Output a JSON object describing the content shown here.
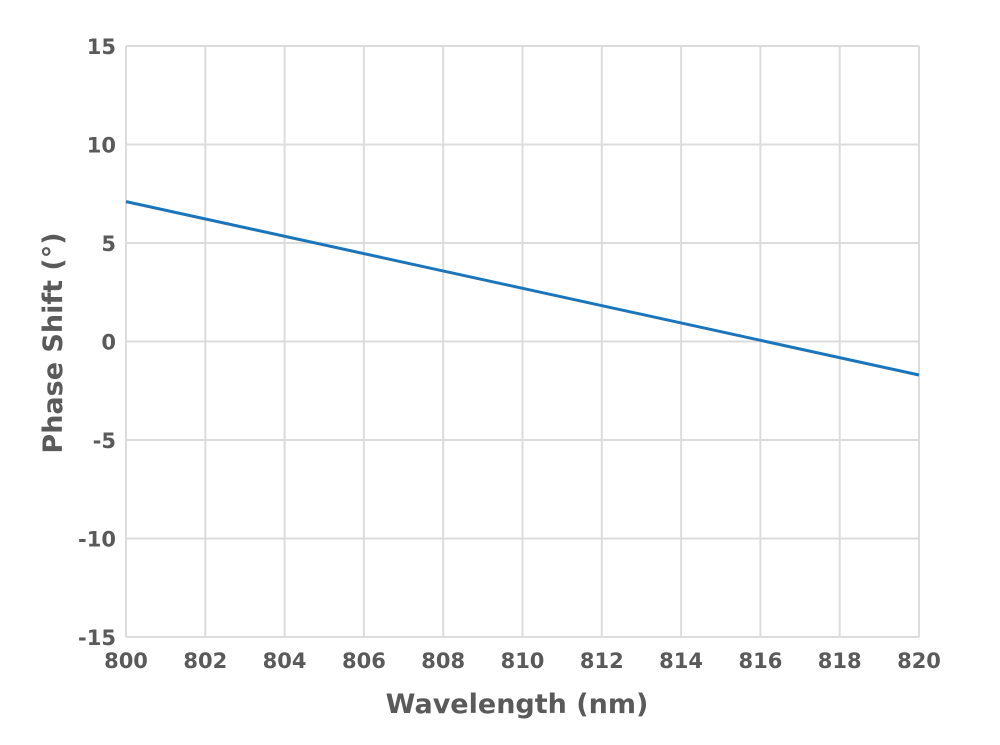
{
  "chart_data": {
    "type": "line",
    "xlabel": "Wavelength (nm)",
    "ylabel": "Phase Shift (°)",
    "xlim": [
      800,
      820
    ],
    "ylim": [
      -15,
      15
    ],
    "x_ticks": [
      "800",
      "802",
      "804",
      "806",
      "808",
      "810",
      "812",
      "814",
      "816",
      "818",
      "820"
    ],
    "y_ticks": [
      "15",
      "10",
      "5",
      "0",
      "-5",
      "-10",
      "-15"
    ],
    "grid": true,
    "legend": "none",
    "series": [
      {
        "color": "#1a75bb",
        "x": [
          800,
          820
        ],
        "y": [
          7.1,
          -1.7
        ]
      }
    ],
    "colors": {
      "grid": "#dcdcdc",
      "text": "#5a5a5a"
    }
  }
}
